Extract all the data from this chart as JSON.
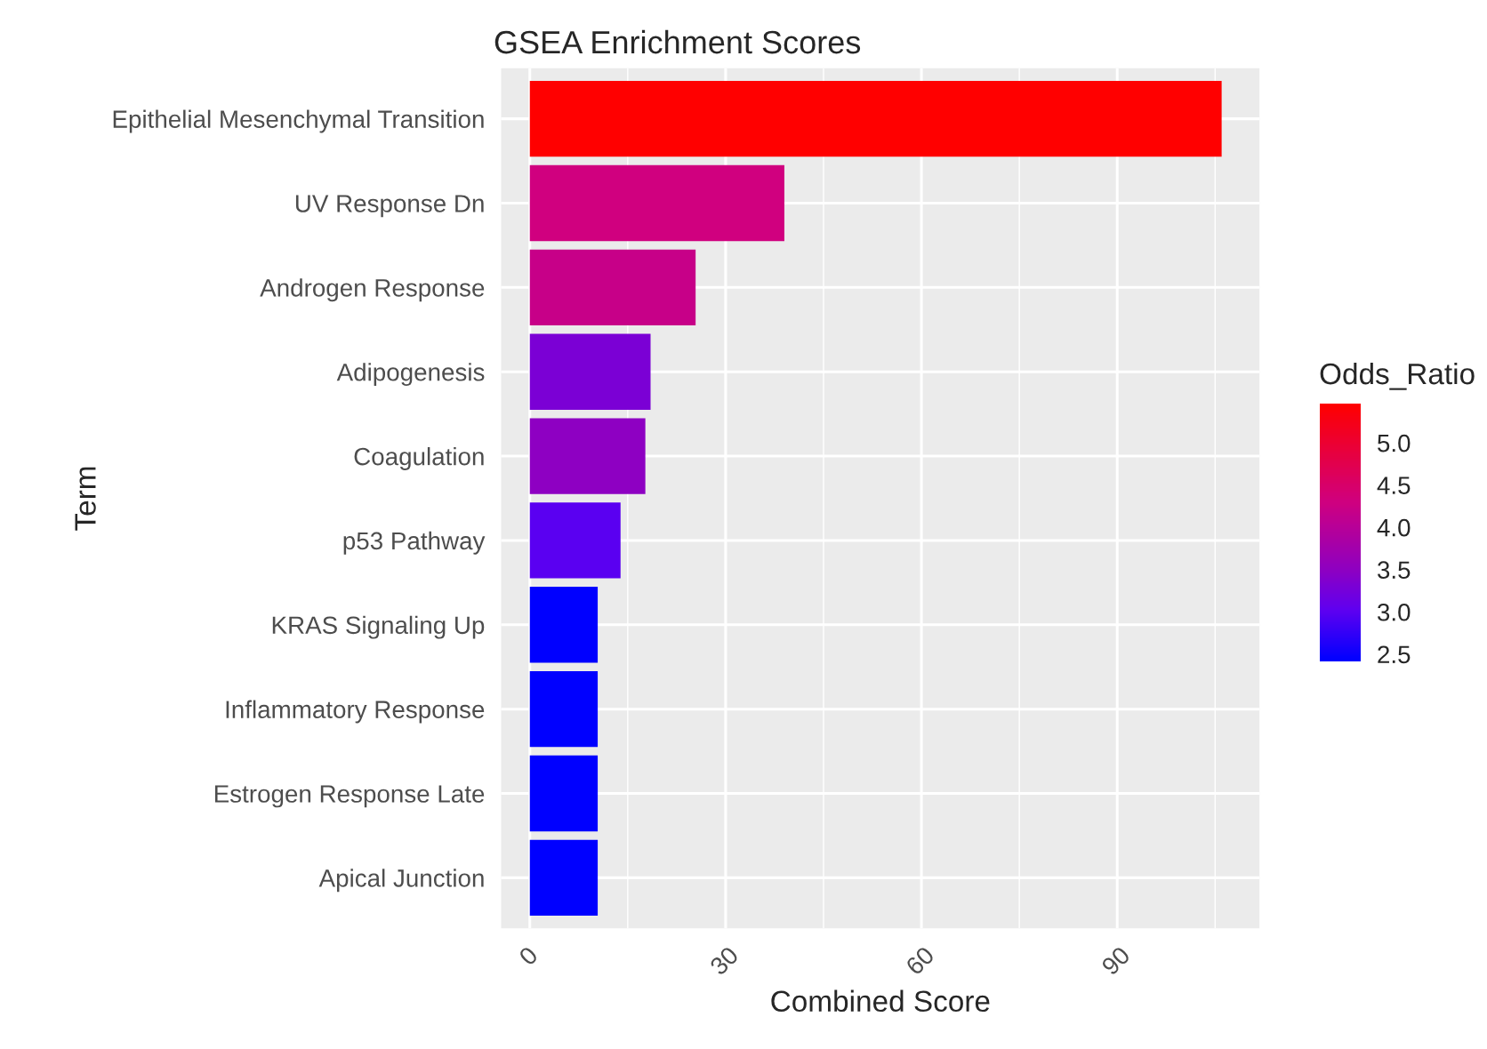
{
  "chart_data": {
    "type": "bar",
    "orientation": "horizontal",
    "title": "GSEA Enrichment Scores",
    "xlabel": "Combined Score",
    "ylabel": "Term",
    "clabel": "Odds_Ratio",
    "categories": [
      "Epithelial Mesenchymal Transition",
      "UV Response Dn",
      "Androgen Response",
      "Adipogenesis",
      "Coagulation",
      "p53 Pathway",
      "KRAS Signaling Up",
      "Inflammatory Response",
      "Estrogen Response Late",
      "Apical Junction"
    ],
    "values": [
      106,
      39,
      25.4,
      18.5,
      17.7,
      13.9,
      10.4,
      10.4,
      10.4,
      10.4
    ],
    "cvalues": [
      5.46,
      4.3,
      4.2,
      3.3,
      3.5,
      3.0,
      2.42,
      2.42,
      2.42,
      2.42
    ],
    "clim": [
      2.42,
      5.46
    ],
    "cticks": [
      2.5,
      {
        "value": 3,
        "label": "3.0"
      },
      3.5,
      {
        "value": 4,
        "label": "4.0"
      },
      4.5,
      {
        "value": 5,
        "label": "5.0"
      }
    ],
    "xlim": [
      -4.4,
      111.8
    ],
    "xticks": [
      0,
      30,
      60,
      90
    ],
    "grid": true
  }
}
